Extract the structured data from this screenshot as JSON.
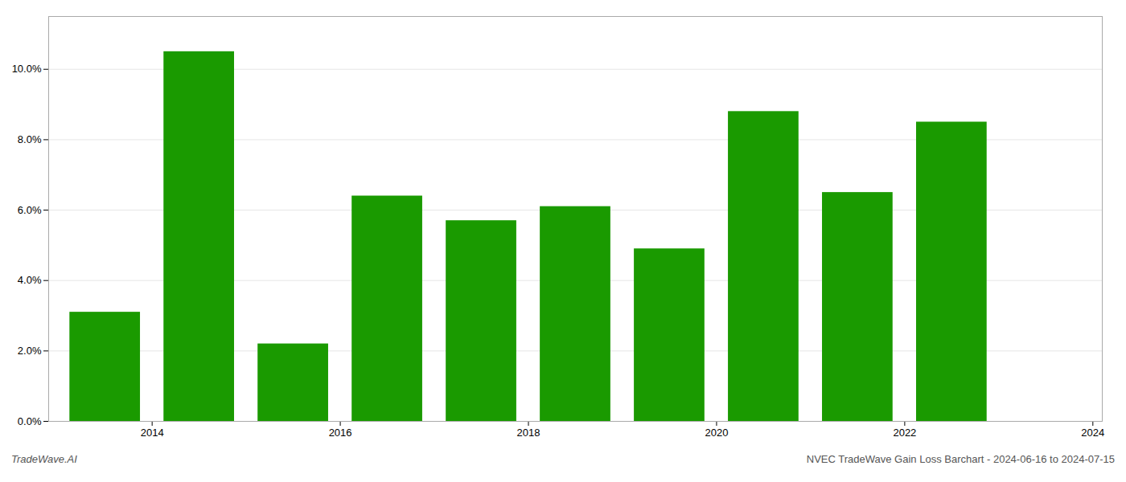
{
  "chart_data": {
    "type": "bar",
    "x": [
      2014,
      2015,
      2016,
      2017,
      2018,
      2019,
      2020,
      2021,
      2022,
      2023
    ],
    "values": [
      0.031,
      0.105,
      0.022,
      0.064,
      0.057,
      0.061,
      0.049,
      0.088,
      0.065,
      0.085
    ],
    "color": "#1a9a00",
    "xlim": [
      2013.4,
      2024.6
    ],
    "xticks": [
      {
        "value": 2014.5,
        "label": "2014"
      },
      {
        "value": 2016.5,
        "label": "2016"
      },
      {
        "value": 2018.5,
        "label": "2018"
      },
      {
        "value": 2020.5,
        "label": "2020"
      },
      {
        "value": 2022.5,
        "label": "2022"
      },
      {
        "value": 2024.5,
        "label": "2024"
      }
    ],
    "ylim": [
      0,
      0.115
    ],
    "yticks": [
      {
        "value": 0.0,
        "label": "0.0%"
      },
      {
        "value": 0.02,
        "label": "2.0%"
      },
      {
        "value": 0.04,
        "label": "4.0%"
      },
      {
        "value": 0.06,
        "label": "6.0%"
      },
      {
        "value": 0.08,
        "label": "8.0%"
      },
      {
        "value": 0.1,
        "label": "10.0%"
      }
    ],
    "grid": true,
    "annotations": [
      "TradeWave.AI",
      "NVEC TradeWave Gain Loss Barchart - 2024-06-16 to 2024-07-15"
    ]
  }
}
